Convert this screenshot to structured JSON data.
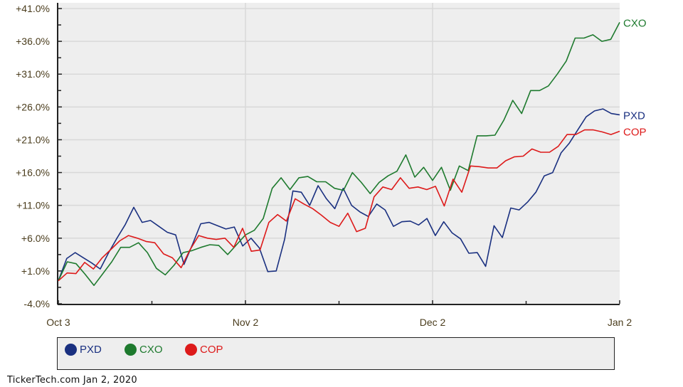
{
  "chart_data": {
    "type": "line",
    "title": "",
    "xlabel": "",
    "ylabel": "",
    "ylim": [
      -4.0,
      41.0
    ],
    "yticks": [
      "+41.0%",
      "+36.0%",
      "+31.0%",
      "+26.0%",
      "+21.0%",
      "+16.0%",
      "+11.0%",
      "+6.0%",
      "+1.0%",
      "-4.0%"
    ],
    "ytick_values": [
      41,
      36,
      31,
      26,
      21,
      16,
      11,
      6,
      1,
      -4
    ],
    "xticks": [
      "Oct 3",
      "Nov 2",
      "Dec 2",
      "Jan 2"
    ],
    "grid": true,
    "legend_position": "bottom",
    "series": [
      {
        "name": "PXD",
        "color": "#1a3080",
        "end_label": "PXD",
        "values": [
          -0.5,
          2.9,
          3.8,
          3.0,
          2.2,
          1.3,
          3.8,
          6.0,
          8.1,
          10.7,
          8.4,
          8.7,
          7.8,
          6.9,
          6.5,
          2.0,
          5.0,
          8.2,
          8.4,
          7.9,
          7.4,
          7.7,
          4.8,
          6.0,
          4.5,
          0.9,
          1.0,
          5.8,
          13.2,
          13.0,
          11.0,
          14.0,
          12.0,
          10.5,
          13.6,
          11.0,
          10.0,
          9.3,
          11.2,
          10.3,
          7.8,
          8.5,
          8.6,
          8.0,
          9.0,
          6.4,
          8.5,
          6.8,
          5.9,
          3.7,
          3.8,
          1.7,
          7.9,
          6.1,
          10.6,
          10.3,
          11.5,
          13.0,
          15.5,
          16.0,
          19.0,
          20.5,
          22.5,
          24.5,
          25.4,
          25.7,
          25.0,
          24.8
        ]
      },
      {
        "name": "CXO",
        "color": "#1e7a2e",
        "end_label": "CXO",
        "values": [
          -0.5,
          2.4,
          2.1,
          0.5,
          -1.2,
          0.6,
          2.4,
          4.6,
          4.6,
          5.3,
          3.8,
          1.4,
          0.4,
          1.9,
          3.8,
          4.1,
          4.6,
          5.0,
          4.9,
          3.5,
          5.0,
          6.5,
          7.2,
          9.0,
          13.6,
          15.2,
          13.4,
          15.2,
          15.4,
          14.6,
          14.6,
          13.6,
          13.3,
          16.0,
          14.5,
          12.8,
          14.5,
          15.5,
          16.2,
          18.7,
          15.3,
          16.8,
          14.8,
          16.8,
          13.3,
          17.0,
          16.3,
          21.6,
          21.6,
          21.7,
          24.0,
          27.0,
          25.0,
          28.5,
          28.5,
          29.2,
          31.0,
          33.0,
          36.5,
          36.5,
          37.0,
          36.0,
          36.3,
          38.9
        ]
      },
      {
        "name": "COP",
        "color": "#dd1a1a",
        "end_label": "COP",
        "values": [
          -0.5,
          0.7,
          0.6,
          2.3,
          1.3,
          3.0,
          4.3,
          5.6,
          6.4,
          6.0,
          5.5,
          5.3,
          3.6,
          3.0,
          1.5,
          4.2,
          6.4,
          6.0,
          5.8,
          6.0,
          4.6,
          7.5,
          4.0,
          4.2,
          8.4,
          9.6,
          8.6,
          12.0,
          11.2,
          10.5,
          9.5,
          8.4,
          7.8,
          9.8,
          7.0,
          7.5,
          12.3,
          13.8,
          13.4,
          15.2,
          13.6,
          13.8,
          13.4,
          13.9,
          10.9,
          15.0,
          13.0,
          17.0,
          16.9,
          16.7,
          16.7,
          17.8,
          18.4,
          18.5,
          19.6,
          19.1,
          19.1,
          20.0,
          21.8,
          21.8,
          22.5,
          22.5,
          22.2,
          21.8,
          22.3
        ]
      }
    ]
  },
  "legend": {
    "items": [
      {
        "label": "PXD",
        "color": "#1a3080"
      },
      {
        "label": "CXO",
        "color": "#1e7a2e"
      },
      {
        "label": "COP",
        "color": "#dd1a1a"
      }
    ]
  },
  "footer": {
    "source": "TickerTech.com  Jan 2, 2020"
  }
}
